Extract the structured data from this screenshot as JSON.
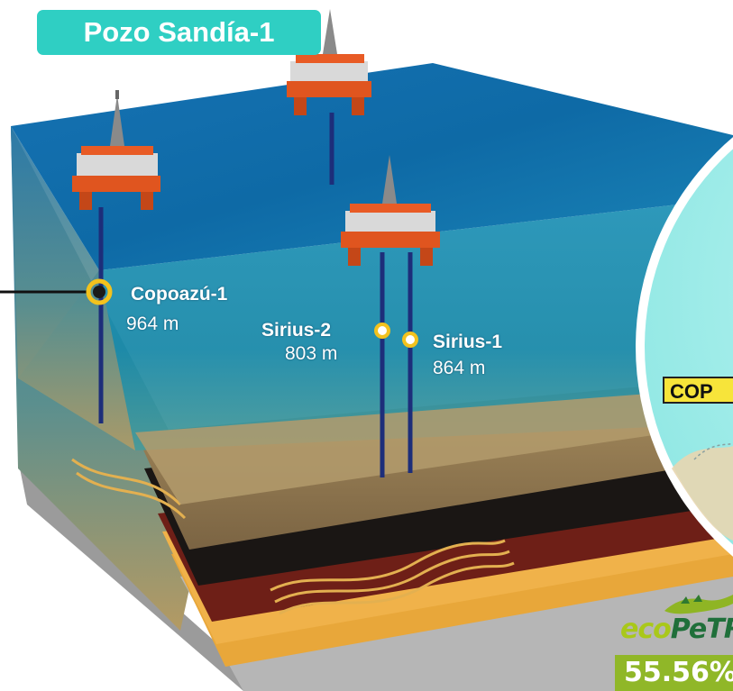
{
  "title": "Pozo Sandía-1",
  "wells": [
    {
      "name": "Copoazú-1",
      "depth": "964 m"
    },
    {
      "name": "Sirius-2",
      "depth": "803 m"
    },
    {
      "name": "Sirius-1",
      "depth": "864 m"
    }
  ],
  "map_inset": {
    "block_code": "COP"
  },
  "partner": {
    "logo_text_1": "eco",
    "logo_text_2": "PeTR",
    "share": "55.56%"
  },
  "colors": {
    "badge": "#2fcfc3",
    "water_top": "#0d67a3",
    "water_side": "#0a4f7e",
    "marker": "#f3c21d",
    "partner_green": "#90b728",
    "map_bg": "#a8f0ee"
  }
}
